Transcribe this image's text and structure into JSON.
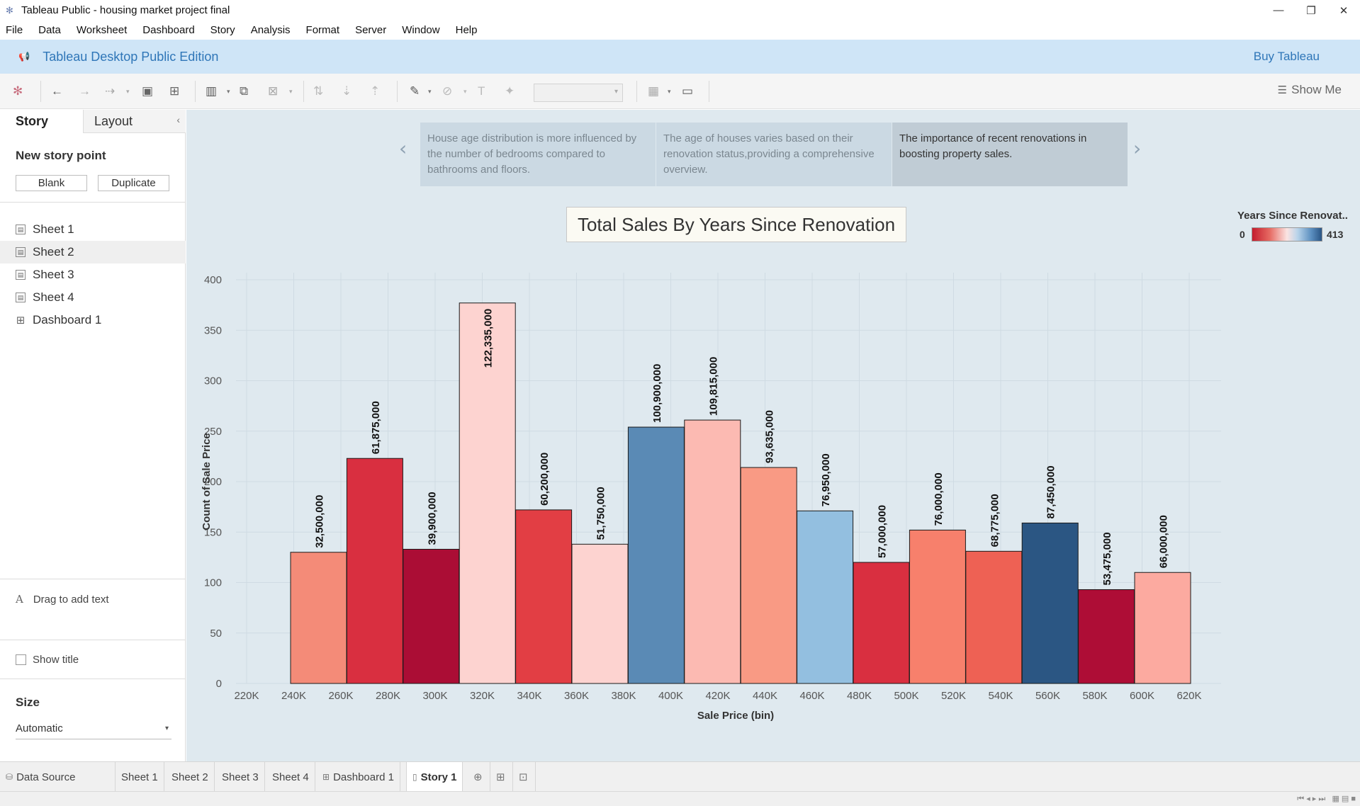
{
  "window": {
    "title": "Tableau Public - housing market project final",
    "controls": [
      "—",
      "❐",
      "✕"
    ]
  },
  "menu": [
    "File",
    "Data",
    "Worksheet",
    "Dashboard",
    "Story",
    "Analysis",
    "Format",
    "Server",
    "Window",
    "Help"
  ],
  "banner": {
    "edition": "Tableau Desktop Public Edition",
    "buy": "Buy Tableau"
  },
  "toolbar": {
    "show_me": "Show Me"
  },
  "left_panel": {
    "tab_story": "Story",
    "tab_layout": "Layout",
    "new_story_point": "New story point",
    "blank_button": "Blank",
    "duplicate_button": "Duplicate",
    "sheets": [
      "Sheet 1",
      "Sheet 2",
      "Sheet 3",
      "Sheet 4",
      "Dashboard 1"
    ],
    "drag_text": "Drag to add text",
    "show_title": "Show title",
    "size_label": "Size",
    "size_value": "Automatic"
  },
  "story_points": [
    "House age distribution is more influenced by the number of bedrooms compared to bathrooms and floors.",
    "The age of houses varies based on their renovation status,providing a comprehensive overview.",
    "The importance of recent renovations in boosting property sales."
  ],
  "legend": {
    "title": "Years Since Renovat..",
    "min": "0",
    "max": "413"
  },
  "chart_data": {
    "type": "bar",
    "title": "Total Sales By Years Since Renovation",
    "xlabel": "Sale Price (bin)",
    "ylabel": "Count of Sale Price",
    "x_ticks": [
      "220K",
      "240K",
      "260K",
      "280K",
      "300K",
      "320K",
      "340K",
      "360K",
      "380K",
      "400K",
      "420K",
      "440K",
      "460K",
      "480K",
      "500K",
      "520K",
      "540K",
      "560K",
      "580K",
      "600K",
      "620K"
    ],
    "y_ticks": [
      "0",
      "50",
      "100",
      "150",
      "200",
      "250",
      "300",
      "350",
      "400"
    ],
    "ylim": [
      0,
      400
    ],
    "grid": true,
    "bars": [
      {
        "bin": "240K",
        "value": 130,
        "label": "32,500,000",
        "color": "#f48b78"
      },
      {
        "bin": "260K",
        "value": 223,
        "label": "61,875,000",
        "color": "#d92f40"
      },
      {
        "bin": "280K",
        "value": 133,
        "label": "39,900,000",
        "color": "#ab0d35"
      },
      {
        "bin": "300K",
        "value": 377,
        "label": "122,335,000",
        "color": "#fdd3d0"
      },
      {
        "bin": "320K",
        "value": 172,
        "label": "60,200,000",
        "color": "#e23e44"
      },
      {
        "bin": "340K",
        "value": 138,
        "label": "51,750,000",
        "color": "#fdd3d0"
      },
      {
        "bin": "360K",
        "value": 254,
        "label": "100,900,000",
        "color": "#5a8ab5"
      },
      {
        "bin": "380K",
        "value": 261,
        "label": "109,815,000",
        "color": "#fcbab2"
      },
      {
        "bin": "400K",
        "value": 214,
        "label": "93,635,000",
        "color": "#f99a84"
      },
      {
        "bin": "420K",
        "value": 171,
        "label": "76,950,000",
        "color": "#93bfe0"
      },
      {
        "bin": "440K",
        "value": 120,
        "label": "57,000,000",
        "color": "#d92f40"
      },
      {
        "bin": "460K",
        "value": 152,
        "label": "76,000,000",
        "color": "#f7806c"
      },
      {
        "bin": "480K",
        "value": 131,
        "label": "68,775,000",
        "color": "#ee6154"
      },
      {
        "bin": "500K",
        "value": 159,
        "label": "87,450,000",
        "color": "#2b5683"
      },
      {
        "bin": "520K",
        "value": 93,
        "label": "53,475,000",
        "color": "#ae0d36"
      },
      {
        "bin": "540K",
        "value": 110,
        "label": "66,000,000",
        "color": "#fcaaa0"
      }
    ]
  },
  "bottom_tabs": [
    "Data Source",
    "Sheet 1",
    "Sheet 2",
    "Sheet 3",
    "Sheet 4",
    "Dashboard 1",
    "Story 1"
  ]
}
